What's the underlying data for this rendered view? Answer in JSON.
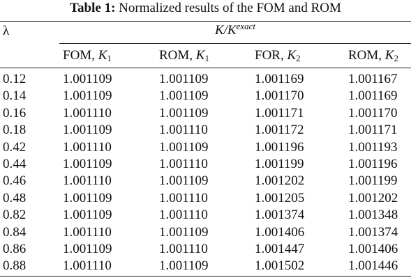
{
  "caption": {
    "label": "Table 1:",
    "text": "Normalized results of the FOM and ROM"
  },
  "table": {
    "row_header": "λ",
    "group_header": {
      "numerator": "K",
      "separator": "/",
      "denominator": "K",
      "superscript": "exact"
    },
    "columns": [
      {
        "label": "FOM, ",
        "symbol": "K",
        "subscript": "1"
      },
      {
        "label": "ROM, ",
        "symbol": "K",
        "subscript": "1"
      },
      {
        "label": "FOR, ",
        "symbol": "K",
        "subscript": "2"
      },
      {
        "label": "ROM, ",
        "symbol": "K",
        "subscript": "2"
      }
    ],
    "rows": [
      [
        "0.12",
        "1.001109",
        "1.001109",
        "1.001169",
        "1.001167"
      ],
      [
        "0.14",
        "1.001109",
        "1.001109",
        "1.001170",
        "1.001169"
      ],
      [
        "0.16",
        "1.001110",
        "1.001109",
        "1.001171",
        "1.001170"
      ],
      [
        "0.18",
        "1.001109",
        "1.001110",
        "1.001172",
        "1.001171"
      ],
      [
        "0.42",
        "1.001110",
        "1.001109",
        "1.001196",
        "1.001193"
      ],
      [
        "0.44",
        "1.001109",
        "1.001110",
        "1.001199",
        "1.001196"
      ],
      [
        "0.46",
        "1.001110",
        "1.001109",
        "1.001202",
        "1.001199"
      ],
      [
        "0.48",
        "1.001109",
        "1.001110",
        "1.001205",
        "1.001202"
      ],
      [
        "0.82",
        "1.001109",
        "1.001110",
        "1.001374",
        "1.001348"
      ],
      [
        "0.84",
        "1.001110",
        "1.001109",
        "1.001406",
        "1.001374"
      ],
      [
        "0.86",
        "1.001109",
        "1.001110",
        "1.001447",
        "1.001406"
      ],
      [
        "0.88",
        "1.001110",
        "1.001109",
        "1.001502",
        "1.001446"
      ]
    ]
  }
}
